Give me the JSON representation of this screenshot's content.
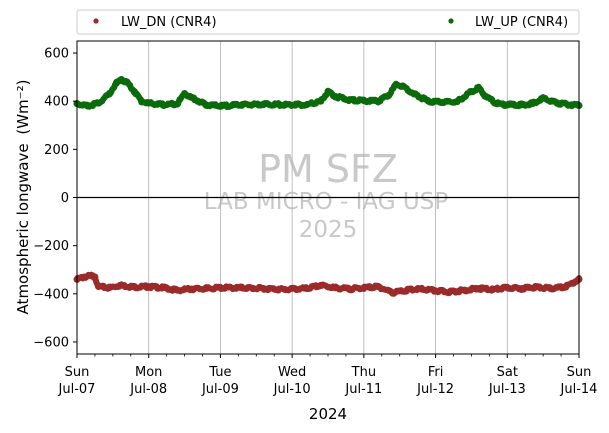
{
  "chart_data": {
    "type": "scatter",
    "ylabel": "Atmospheric longwave",
    "ylabel_unit": "(Wm⁻²)",
    "xlabel": "2024",
    "ylim": [
      -650,
      650
    ],
    "yticks": [
      -600,
      -400,
      -200,
      0,
      200,
      400,
      600
    ],
    "xlim": [
      0,
      7
    ],
    "xticks": [
      {
        "day": "Sun",
        "date": "Jul-07"
      },
      {
        "day": "Mon",
        "date": "Jul-08"
      },
      {
        "day": "Tue",
        "date": "Jul-09"
      },
      {
        "day": "Wed",
        "date": "Jul-10"
      },
      {
        "day": "Thu",
        "date": "Jul-11"
      },
      {
        "day": "Fri",
        "date": "Jul-12"
      },
      {
        "day": "Sat",
        "date": "Jul-13"
      },
      {
        "day": "Sun",
        "date": "Jul-14"
      }
    ],
    "grid": "vertical",
    "zero_line": true,
    "legend_placement": "top, above plot",
    "series": [
      {
        "name": "LW_DN (CNR4)",
        "color": "#9b2a2a",
        "x": [
          0,
          0.1,
          0.2,
          0.25,
          0.3,
          0.45,
          0.6,
          0.8,
          1.0,
          1.2,
          1.4,
          1.6,
          1.8,
          2.0,
          2.3,
          2.6,
          2.9,
          3.2,
          3.4,
          3.6,
          3.8,
          4.0,
          4.2,
          4.4,
          4.6,
          4.8,
          5.0,
          5.2,
          5.4,
          5.6,
          5.8,
          6.0,
          6.2,
          6.4,
          6.6,
          6.8,
          6.95,
          7.0
        ],
        "y": [
          -340,
          -330,
          -325,
          -330,
          -370,
          -375,
          -365,
          -372,
          -370,
          -375,
          -385,
          -380,
          -378,
          -375,
          -375,
          -378,
          -382,
          -378,
          -365,
          -375,
          -380,
          -375,
          -370,
          -395,
          -385,
          -380,
          -388,
          -392,
          -385,
          -378,
          -382,
          -375,
          -378,
          -372,
          -378,
          -372,
          -350,
          -340
        ]
      },
      {
        "name": "LW_UP (CNR4)",
        "color": "#0b6b0b",
        "x": [
          0,
          0.15,
          0.3,
          0.45,
          0.55,
          0.62,
          0.7,
          0.8,
          0.9,
          1.0,
          1.2,
          1.4,
          1.5,
          1.6,
          1.8,
          2.0,
          2.3,
          2.6,
          2.9,
          3.2,
          3.4,
          3.5,
          3.6,
          3.8,
          4.0,
          4.2,
          4.35,
          4.45,
          4.55,
          4.7,
          4.9,
          5.1,
          5.3,
          5.5,
          5.6,
          5.7,
          5.85,
          6.0,
          6.2,
          6.35,
          6.5,
          6.7,
          6.9,
          7.0
        ],
        "y": [
          390,
          380,
          392,
          430,
          475,
          490,
          478,
          440,
          400,
          392,
          385,
          390,
          432,
          415,
          385,
          380,
          385,
          388,
          385,
          385,
          400,
          440,
          420,
          405,
          402,
          400,
          425,
          470,
          462,
          430,
          400,
          395,
          398,
          440,
          455,
          420,
          390,
          385,
          385,
          390,
          412,
          392,
          385,
          382
        ]
      }
    ]
  },
  "watermark": {
    "line1": "PM SFZ",
    "line2": "LAB MICRO - IAG USP",
    "line3": "2025"
  }
}
